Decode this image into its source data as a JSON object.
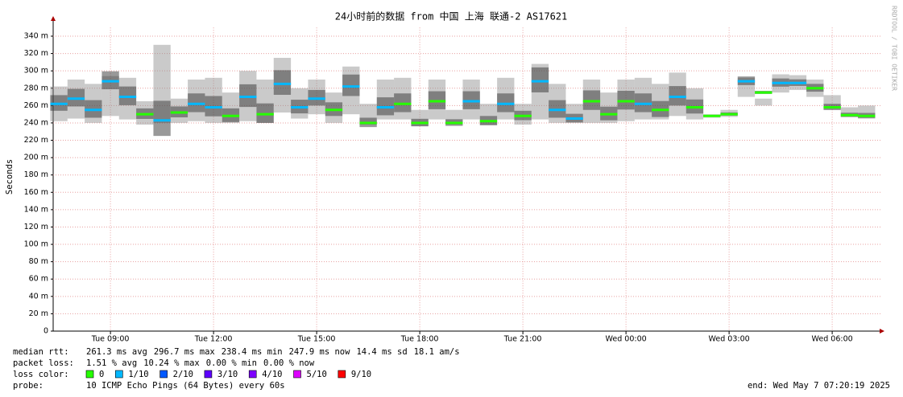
{
  "chart_data": {
    "type": "smokeping",
    "title": "24小时前的数据 from 中国 上海 联通-2 AS17621",
    "y_label": "Seconds",
    "watermark": "RRDTOOL / TOBI OETIKER",
    "xlim": [
      "Tue 07:20",
      "Wed 07:20"
    ],
    "xticks": [
      "Tue 09:00",
      "Tue 12:00",
      "Tue 15:00",
      "Tue 18:00",
      "Tue 21:00",
      "Wed 00:00",
      "Wed 03:00",
      "Wed 06:00"
    ],
    "ylim": [
      0,
      350
    ],
    "yticks": [
      0,
      {
        "value": 20,
        "label": "20 m"
      },
      {
        "value": 40,
        "label": "40 m"
      },
      {
        "value": 60,
        "label": "60 m"
      },
      {
        "value": 80,
        "label": "80 m"
      },
      {
        "value": 100,
        "label": "100 m"
      },
      {
        "value": 120,
        "label": "120 m"
      },
      {
        "value": 140,
        "label": "140 m"
      },
      {
        "value": 160,
        "label": "160 m"
      },
      {
        "value": 180,
        "label": "180 m"
      },
      {
        "value": 200,
        "label": "200 m"
      },
      {
        "value": 220,
        "label": "220 m"
      },
      {
        "value": 240,
        "label": "240 m"
      },
      {
        "value": 260,
        "label": "260 m"
      },
      {
        "value": 280,
        "label": "280 m"
      },
      {
        "value": 300,
        "label": "300 m"
      },
      {
        "value": 320,
        "label": "320 m"
      },
      {
        "value": 340,
        "label": "340 m"
      }
    ],
    "grid": true,
    "grid_color": "#e8a0a0",
    "smoke_color": "#8a8a8a",
    "x": [
      "Tue 07:30",
      "Tue 08:00",
      "Tue 08:30",
      "Tue 09:00",
      "Tue 09:30",
      "Tue 10:00",
      "Tue 10:30",
      "Tue 11:00",
      "Tue 11:30",
      "Tue 12:00",
      "Tue 12:30",
      "Tue 13:00",
      "Tue 13:30",
      "Tue 14:00",
      "Tue 14:30",
      "Tue 15:00",
      "Tue 15:30",
      "Tue 16:00",
      "Tue 16:30",
      "Tue 17:00",
      "Tue 17:30",
      "Tue 18:00",
      "Tue 18:30",
      "Tue 19:00",
      "Tue 19:30",
      "Tue 20:00",
      "Tue 20:30",
      "Tue 21:00",
      "Tue 21:30",
      "Tue 22:00",
      "Tue 22:30",
      "Tue 23:00",
      "Tue 23:30",
      "Wed 00:00",
      "Wed 00:30",
      "Wed 01:00",
      "Wed 01:30",
      "Wed 02:00",
      "Wed 02:30",
      "Wed 03:00",
      "Wed 03:30",
      "Wed 04:00",
      "Wed 04:30",
      "Wed 05:00",
      "Wed 05:30",
      "Wed 06:00",
      "Wed 06:30",
      "Wed 07:00"
    ],
    "median": [
      262,
      268,
      255,
      288,
      270,
      250,
      243,
      252,
      262,
      258,
      248,
      270,
      250,
      285,
      258,
      268,
      255,
      282,
      240,
      258,
      262,
      240,
      265,
      240,
      265,
      242,
      262,
      248,
      288,
      255,
      245,
      265,
      250,
      265,
      262,
      255,
      270,
      258,
      248,
      250,
      288,
      275,
      286,
      286,
      280,
      258,
      249,
      248
    ],
    "loss": [
      1,
      1,
      1,
      1,
      1,
      0,
      1,
      0,
      1,
      1,
      0,
      1,
      0,
      1,
      1,
      1,
      0,
      1,
      0,
      1,
      0,
      0,
      0,
      0,
      1,
      0,
      1,
      0,
      1,
      1,
      1,
      0,
      0,
      0,
      1,
      0,
      1,
      0,
      0,
      0,
      1,
      0,
      1,
      1,
      0,
      0,
      0,
      0
    ],
    "low": [
      242,
      245,
      240,
      248,
      244,
      238,
      240,
      240,
      242,
      240,
      240,
      242,
      240,
      252,
      245,
      250,
      240,
      250,
      238,
      244,
      244,
      236,
      244,
      238,
      244,
      238,
      244,
      238,
      244,
      240,
      240,
      240,
      240,
      242,
      244,
      244,
      248,
      244,
      246,
      247,
      270,
      260,
      275,
      278,
      270,
      256,
      247,
      246
    ],
    "high": [
      282,
      290,
      285,
      294,
      292,
      265,
      330,
      268,
      290,
      292,
      275,
      300,
      290,
      315,
      280,
      290,
      275,
      305,
      262,
      290,
      292,
      255,
      290,
      255,
      290,
      262,
      292,
      262,
      308,
      285,
      262,
      290,
      275,
      290,
      292,
      285,
      298,
      280,
      250,
      255,
      292,
      268,
      296,
      295,
      290,
      272,
      258,
      260
    ],
    "median_rtt": {
      "label": "median rtt:",
      "items": [
        "261.3 ms avg",
        "296.7 ms max",
        "238.4 ms min",
        "247.9 ms now",
        "14.4 ms sd",
        "18.1   am/s"
      ]
    },
    "packet_loss": {
      "label": "packet loss:",
      "items": [
        "1.51 % avg",
        "10.24 % max",
        "0.00 % min",
        "0.00 % now"
      ]
    },
    "loss_colors": {
      "label": "loss color:",
      "entries": [
        {
          "value": 0,
          "color": "#26ff00"
        },
        {
          "value": 1,
          "label": "1/10",
          "color": "#00b8ff"
        },
        {
          "value": 2,
          "label": "2/10",
          "color": "#0059ff"
        },
        {
          "value": 3,
          "label": "3/10",
          "color": "#5e00ff"
        },
        {
          "value": 4,
          "label": "4/10",
          "color": "#7e00ff"
        },
        {
          "value": 5,
          "label": "5/10",
          "color": "#dd00ff"
        },
        {
          "value": 9,
          "label": "9/10",
          "color": "#ff0000"
        }
      ]
    },
    "probe": {
      "label": "probe:",
      "text": "10 ICMP Echo Pings (64 Bytes) every 60s"
    },
    "end": "end: Wed May  7 07:20:19 2025"
  }
}
